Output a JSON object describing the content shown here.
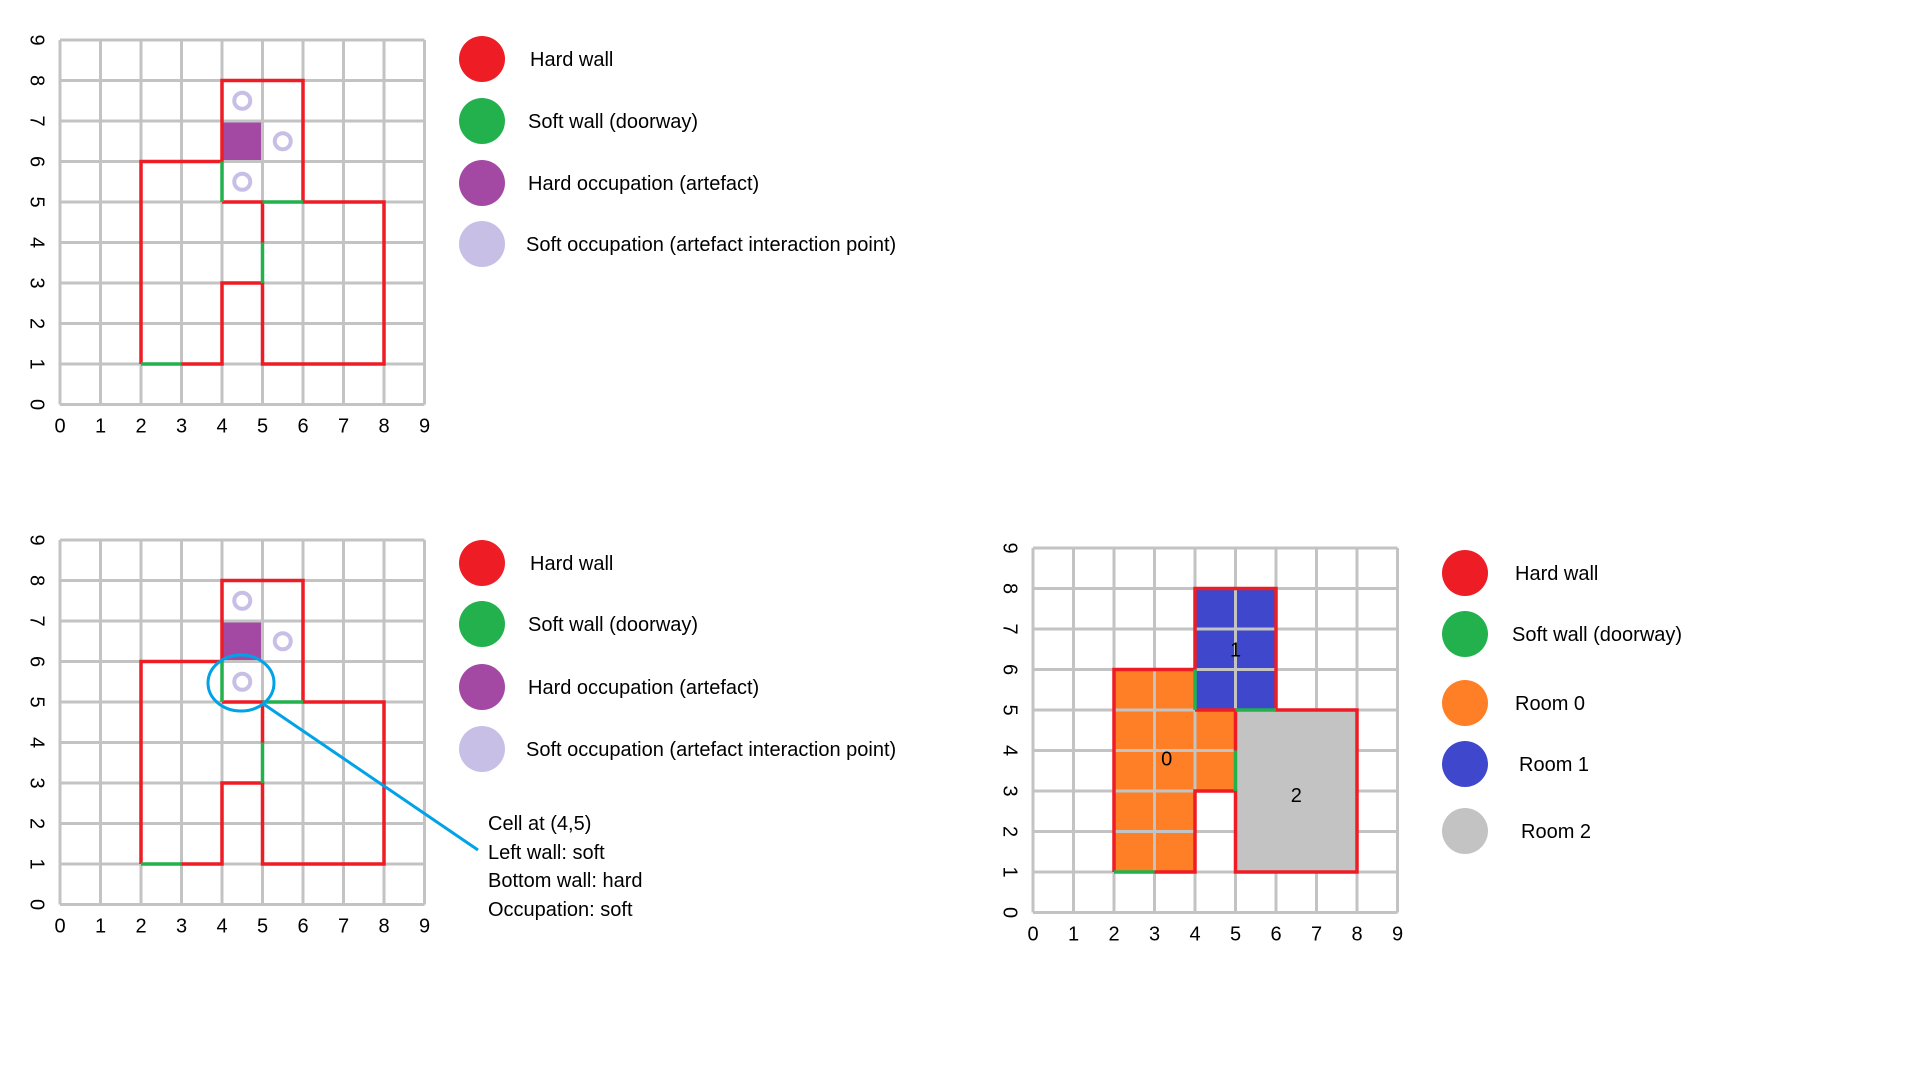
{
  "colors": {
    "hard_wall": "#ee1c25",
    "soft_wall": "#22b14c",
    "hard_occupation": "#a349a4",
    "soft_occupation": "#c8bfe7",
    "room_0": "#ff7f27",
    "room_1": "#3f48cc",
    "room_2": "#c3c3c3",
    "callout": "#00a2e8",
    "grid": "#c3c3c3"
  },
  "axis": {
    "x_ticks": [
      "0",
      "1",
      "2",
      "3",
      "4",
      "5",
      "6",
      "7",
      "8",
      "9"
    ],
    "y_ticks": [
      "0",
      "1",
      "2",
      "3",
      "4",
      "5",
      "6",
      "7",
      "8",
      "9"
    ]
  },
  "legend_main": [
    {
      "label": "Hard wall",
      "color": "#ee1c25"
    },
    {
      "label": "Soft wall (doorway)",
      "color": "#22b14c"
    },
    {
      "label": "Hard occupation (artefact)",
      "color": "#a349a4"
    },
    {
      "label": "Soft occupation (artefact interaction point)",
      "color": "#c8bfe7"
    }
  ],
  "legend_rooms": [
    {
      "label": "Hard wall",
      "color": "#ee1c25"
    },
    {
      "label": "Soft wall (doorway)",
      "color": "#22b14c"
    },
    {
      "label": "Room 0",
      "color": "#ff7f27"
    },
    {
      "label": "Room 1",
      "color": "#3f48cc"
    },
    {
      "label": "Room 2",
      "color": "#c3c3c3"
    }
  ],
  "callout_lines": [
    "Cell at (4,5)",
    "Left wall: soft",
    "Bottom wall: hard",
    "Occupation: soft"
  ],
  "rooms": [
    {
      "label": "0",
      "cells": [
        [
          2,
          1,
          4,
          6
        ],
        [
          4,
          3,
          5,
          5
        ]
      ],
      "color": "#ff7f27"
    },
    {
      "label": "1",
      "cells": [
        [
          4,
          5,
          6,
          8
        ]
      ],
      "color": "#3f48cc"
    },
    {
      "label": "2",
      "cells": [
        [
          5,
          1,
          8,
          5
        ]
      ],
      "color": "#c3c3c3"
    }
  ],
  "hard_walls": [
    [
      [
        2,
        1
      ],
      [
        2,
        6
      ],
      [
        4,
        6
      ]
    ],
    [
      [
        4,
        6
      ],
      [
        4,
        8
      ],
      [
        6,
        8
      ],
      [
        6,
        5
      ],
      [
        8,
        5
      ],
      [
        8,
        1
      ],
      [
        5,
        1
      ],
      [
        5,
        3
      ],
      [
        4,
        3
      ],
      [
        4,
        1
      ],
      [
        3,
        1
      ]
    ],
    [
      [
        4,
        5
      ],
      [
        5,
        5
      ],
      [
        5,
        4
      ]
    ]
  ],
  "soft_walls": [
    [
      [
        2,
        1
      ],
      [
        3,
        1
      ]
    ],
    [
      [
        4,
        6
      ],
      [
        4,
        5
      ]
    ],
    [
      [
        5,
        5
      ],
      [
        6,
        5
      ]
    ],
    [
      [
        5,
        4
      ],
      [
        5,
        3
      ]
    ]
  ],
  "hard_occupation_cells": [
    [
      4,
      6
    ]
  ],
  "soft_occupation_points": [
    [
      4.5,
      7.5
    ],
    [
      5.5,
      6.5
    ],
    [
      4.5,
      5.5
    ]
  ]
}
